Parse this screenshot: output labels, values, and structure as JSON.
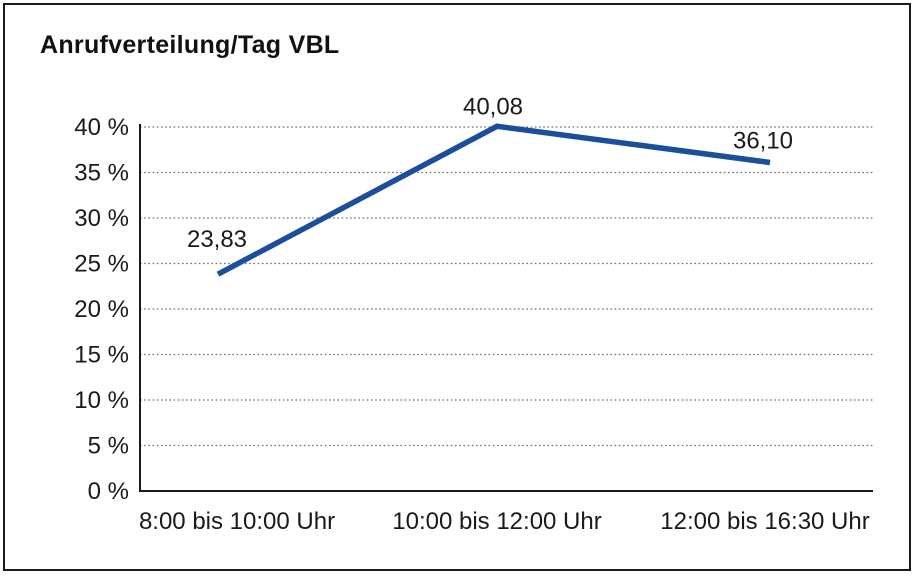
{
  "window": {
    "background": "#ffffff",
    "frame_border_color": "#1c1c1c"
  },
  "chart_data": {
    "type": "line",
    "title": "Anrufverteilung/Tag VBL",
    "categories": [
      "8:00 bis 10:00 Uhr",
      "10:00 bis 12:00 Uhr",
      "12:00 bis 16:30 Uhr"
    ],
    "series": [
      {
        "name": "Anrufverteilung/Tag VBL",
        "values": [
          23.83,
          40.08,
          36.1
        ],
        "color": "#1b4f9b"
      }
    ],
    "point_labels": [
      "23,83",
      "40,08",
      "36,10"
    ],
    "xlabel": "",
    "ylabel": "",
    "ylim": [
      0,
      40
    ],
    "ytick_step": 5,
    "ytick_labels": [
      "0 %",
      "5 %",
      "10 %",
      "15 %",
      "20 %",
      "25 %",
      "30 %",
      "35 %",
      "40 %"
    ],
    "grid": "horizontal-dotted",
    "legend": "none",
    "gridline_color": "#6e6e6e",
    "axis_color": "#1a1a1a",
    "text_color": "#1a1a1a"
  }
}
